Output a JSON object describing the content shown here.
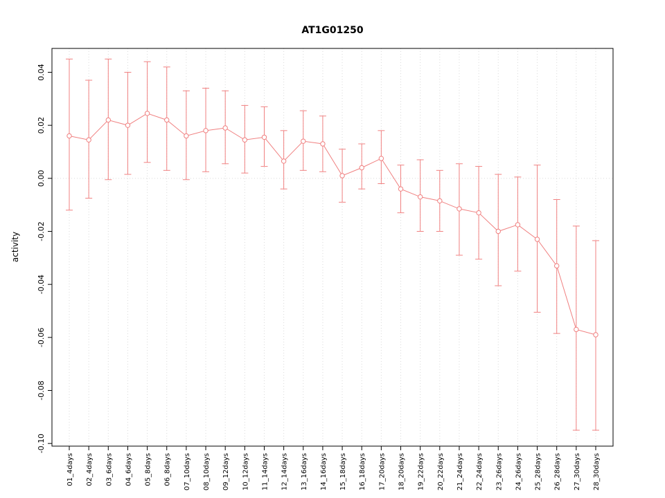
{
  "chart_data": {
    "type": "line",
    "title": "AT1G01250",
    "xlabel": "",
    "ylabel": "activity",
    "ylim": [
      -0.101,
      0.049
    ],
    "yticks": [
      "-0.10",
      "-0.08",
      "-0.06",
      "-0.04",
      "-0.02",
      "0.00",
      "0.02",
      "0.04"
    ],
    "grid": "vertical-dotted-per-category-plus-zero-line",
    "legend": "none",
    "point_style": "open-circle",
    "error_bars": true,
    "colors": {
      "series": "#f08080",
      "grid": "#d9d9d9",
      "axis": "#000000",
      "background": "#ffffff"
    },
    "categories": [
      "01_4days",
      "02_4days",
      "03_6days",
      "04_6days",
      "05_8days",
      "06_8days",
      "07_10days",
      "08_10days",
      "09_12days",
      "10_12days",
      "11_14days",
      "12_14days",
      "13_16days",
      "14_16days",
      "15_18days",
      "16_18days",
      "17_20days",
      "18_20days",
      "19_22days",
      "20_22days",
      "21_24days",
      "22_24days",
      "23_26days",
      "24_26days",
      "25_28days",
      "26_28days",
      "27_30days",
      "28_30days"
    ],
    "values": [
      0.016,
      0.0145,
      0.022,
      0.02,
      0.0245,
      0.022,
      0.016,
      0.018,
      0.019,
      0.0145,
      0.0155,
      0.0065,
      0.014,
      0.013,
      0.001,
      0.004,
      0.0075,
      -0.004,
      -0.007,
      -0.0085,
      -0.0115,
      -0.013,
      -0.02,
      -0.0175,
      -0.023,
      -0.033,
      -0.057,
      -0.059
    ],
    "error_low": [
      -0.012,
      -0.0075,
      -0.0005,
      0.0015,
      0.006,
      0.003,
      -0.0005,
      0.0025,
      0.0055,
      0.002,
      0.0045,
      -0.004,
      0.003,
      0.0025,
      -0.009,
      -0.004,
      -0.002,
      -0.013,
      -0.02,
      -0.02,
      -0.029,
      -0.0305,
      -0.0405,
      -0.035,
      -0.0505,
      -0.0585,
      -0.095,
      -0.095
    ],
    "error_high": [
      0.045,
      0.037,
      0.045,
      0.04,
      0.044,
      0.042,
      0.033,
      0.034,
      0.033,
      0.0275,
      0.027,
      0.018,
      0.0255,
      0.0235,
      0.011,
      0.013,
      0.018,
      0.005,
      0.007,
      0.003,
      0.0055,
      0.0045,
      0.0015,
      0.0005,
      0.005,
      -0.008,
      -0.018,
      -0.0235
    ]
  }
}
